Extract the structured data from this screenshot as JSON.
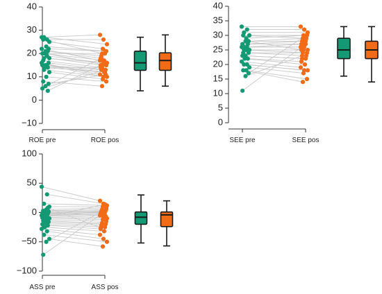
{
  "colors": {
    "pre": "#139a74",
    "pos": "#f26b16",
    "pair_line": "#c8c8c8",
    "box_stroke": "#1a1a1a"
  },
  "chart_data": [
    {
      "type": "scatter",
      "id": "roe",
      "title": "",
      "xlabel": "",
      "ylabel": "",
      "categories": [
        "ROE pre",
        "ROE pos"
      ],
      "ylim": [
        -10,
        40
      ],
      "yticks": [
        -10,
        0,
        10,
        20,
        30,
        40
      ],
      "grid": false,
      "pre": [
        27,
        26,
        27,
        25,
        23,
        26,
        22,
        21,
        20,
        21,
        20,
        22,
        19,
        18,
        18,
        20,
        17,
        16,
        15,
        15,
        14,
        14,
        16,
        15,
        13,
        12,
        10,
        8,
        7,
        6,
        5,
        4
      ],
      "pos": [
        28,
        26,
        24,
        22,
        21,
        20,
        21,
        19,
        20,
        18,
        17,
        17,
        16,
        16,
        15,
        15,
        14,
        13,
        13,
        12,
        14,
        12,
        11,
        10,
        10,
        9,
        8,
        6,
        11,
        18,
        13,
        15
      ],
      "box_pre": {
        "min": 4,
        "q1": 12.8,
        "median": 16,
        "q3": 21,
        "max": 27
      },
      "box_pos": {
        "min": 6,
        "q1": 12.8,
        "median": 17,
        "q3": 20.3,
        "max": 28
      }
    },
    {
      "type": "scatter",
      "id": "see",
      "title": "",
      "xlabel": "",
      "ylabel": "",
      "categories": [
        "SEE pre",
        "SEE pos"
      ],
      "ylim": [
        0,
        40
      ],
      "yticks": [
        0,
        5,
        10,
        15,
        20,
        25,
        30,
        35,
        40
      ],
      "grid": false,
      "pre": [
        33,
        32,
        31,
        30,
        29,
        30,
        28,
        28,
        27,
        27,
        26,
        26,
        26,
        25,
        25,
        25,
        24,
        24,
        23,
        23,
        22,
        22,
        21,
        20,
        20,
        19,
        18,
        18,
        17,
        16,
        11,
        28
      ],
      "pos": [
        33,
        32,
        31,
        30,
        30,
        29,
        29,
        28,
        28,
        27,
        27,
        26,
        26,
        25,
        25,
        24,
        24,
        23,
        22,
        22,
        21,
        20,
        19,
        18,
        18,
        17,
        15,
        14,
        30,
        23,
        27,
        25
      ],
      "box_pre": {
        "min": 16,
        "q1": 22,
        "median": 25,
        "q3": 29,
        "max": 33
      },
      "box_pos": {
        "min": 14,
        "q1": 22,
        "median": 25,
        "q3": 28,
        "max": 33
      }
    },
    {
      "type": "scatter",
      "id": "ass",
      "title": "",
      "xlabel": "",
      "ylabel": "",
      "categories": [
        "ASS pre",
        "ASS pos"
      ],
      "ylim": [
        -100,
        100
      ],
      "yticks": [
        -100,
        -50,
        0,
        50,
        100
      ],
      "grid": false,
      "pre": [
        44,
        31,
        15,
        10,
        5,
        3,
        2,
        0,
        -1,
        -2,
        -4,
        -5,
        -6,
        -8,
        -10,
        -12,
        -14,
        -16,
        -18,
        -20,
        -22,
        -25,
        -28,
        -32,
        -38,
        -45,
        -50,
        -72,
        1,
        -3,
        -9,
        8
      ],
      "pos": [
        20,
        15,
        12,
        10,
        8,
        5,
        3,
        2,
        0,
        -1,
        -3,
        -5,
        -8,
        -10,
        -12,
        -15,
        -18,
        -20,
        -22,
        -25,
        -28,
        -32,
        -38,
        -45,
        -50,
        -58,
        6,
        -2,
        -6,
        1,
        14,
        -26
      ],
      "box_pre": {
        "min": -52,
        "q1": -20,
        "median": -8,
        "q3": 1,
        "max": 30
      },
      "box_pos": {
        "min": -57,
        "q1": -24,
        "median": -4,
        "q3": 1,
        "max": 20
      }
    }
  ]
}
